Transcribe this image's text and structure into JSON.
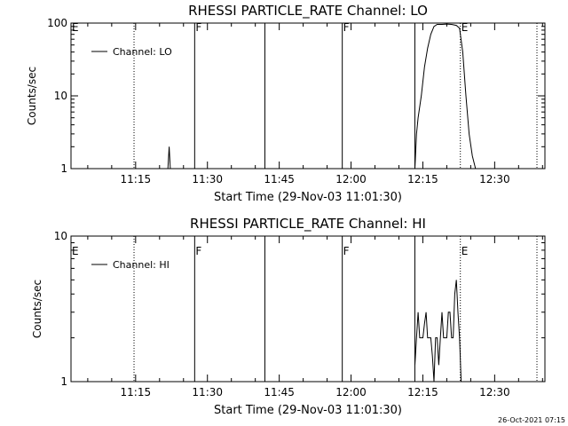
{
  "chart_data": [
    {
      "type": "line",
      "title": "RHESSI PARTICLE_RATE Channel: LO",
      "xlabel": "Start Time (29-Nov-03 11:01:30)",
      "ylabel": "Counts/sec",
      "yscale": "log",
      "xlim": [
        "11:01:30",
        "12:40:30"
      ],
      "ylim": [
        1,
        100
      ],
      "x_ticks": [
        "11:15",
        "11:30",
        "11:45",
        "12:00",
        "12:15",
        "12:30"
      ],
      "y_ticks": [
        "1",
        "10",
        "100"
      ],
      "legend": {
        "placement": "top-left",
        "entries": [
          "Channel: LO"
        ]
      },
      "markers": [
        {
          "label": "E",
          "time": "11:01:30",
          "style": "dotted"
        },
        {
          "time": "11:14:40",
          "style": "dotted"
        },
        {
          "label": "F",
          "time": "11:27:20",
          "style": "solid"
        },
        {
          "time": "11:42:00",
          "style": "solid"
        },
        {
          "label": "F",
          "time": "11:58:10",
          "style": "solid"
        },
        {
          "time": "12:13:20",
          "style": "solid"
        },
        {
          "label": "E",
          "time": "12:22:50",
          "style": "dotted"
        },
        {
          "time": "12:38:50",
          "style": "dotted"
        }
      ],
      "series": [
        {
          "name": "Channel: LO",
          "segments": [
            {
              "x": [
                "11:21:45",
                "11:22:00",
                "11:22:15"
              ],
              "y": [
                1,
                2,
                1
              ]
            },
            {
              "x": [
                "12:13:20",
                "12:13:40",
                "12:14:00",
                "12:14:40",
                "12:15:20",
                "12:16:00",
                "12:16:40",
                "12:17:20",
                "12:18:00",
                "12:19:00",
                "12:20:00",
                "12:21:00",
                "12:22:00",
                "12:22:40",
                "12:23:20",
                "12:24:00",
                "12:24:40",
                "12:25:20",
                "12:26:00"
              ],
              "y": [
                1,
                3,
                5,
                10,
                25,
                45,
                70,
                90,
                96,
                96,
                97,
                96,
                93,
                85,
                40,
                10,
                3,
                1.5,
                1
              ]
            }
          ]
        }
      ]
    },
    {
      "type": "line",
      "title": "RHESSI PARTICLE_RATE Channel: HI",
      "xlabel": "Start Time (29-Nov-03 11:01:30)",
      "ylabel": "Counts/sec",
      "yscale": "log",
      "xlim": [
        "11:01:30",
        "12:40:30"
      ],
      "ylim": [
        1,
        10
      ],
      "x_ticks": [
        "11:15",
        "11:30",
        "11:45",
        "12:00",
        "12:15",
        "12:30"
      ],
      "y_ticks": [
        "1",
        "10"
      ],
      "legend": {
        "placement": "top-left",
        "entries": [
          "Channel: HI"
        ]
      },
      "markers": [
        {
          "label": "E",
          "time": "11:01:30",
          "style": "dotted"
        },
        {
          "time": "11:14:40",
          "style": "dotted"
        },
        {
          "label": "F",
          "time": "11:27:20",
          "style": "solid"
        },
        {
          "time": "11:42:00",
          "style": "solid"
        },
        {
          "label": "F",
          "time": "11:58:10",
          "style": "solid"
        },
        {
          "time": "12:13:20",
          "style": "solid"
        },
        {
          "label": "E",
          "time": "12:22:50",
          "style": "dotted"
        },
        {
          "time": "12:38:50",
          "style": "dotted"
        }
      ],
      "series": [
        {
          "name": "Channel: HI",
          "segments": [
            {
              "x": [
                "12:13:20",
                "12:13:40",
                "12:14:00",
                "12:14:20",
                "12:14:40",
                "12:15:00",
                "12:15:20",
                "12:15:40",
                "12:16:00",
                "12:16:20",
                "12:16:40",
                "12:17:00",
                "12:17:20",
                "12:17:40",
                "12:18:00",
                "12:18:20",
                "12:18:40",
                "12:19:00",
                "12:19:20",
                "12:19:40",
                "12:20:00",
                "12:20:20",
                "12:20:40",
                "12:21:00",
                "12:21:20",
                "12:21:40",
                "12:22:00",
                "12:22:20",
                "12:22:40",
                "12:23:00"
              ],
              "y": [
                1.3,
                2,
                3,
                2,
                2,
                2,
                2.5,
                3,
                2,
                2,
                2,
                1.5,
                1,
                2,
                2,
                1.3,
                2,
                3,
                2,
                2,
                2,
                3,
                3,
                2,
                2,
                4,
                5,
                3,
                2,
                1
              ]
            }
          ]
        }
      ]
    }
  ],
  "footer": {
    "timestamp": "26-Oct-2021 07:15"
  }
}
